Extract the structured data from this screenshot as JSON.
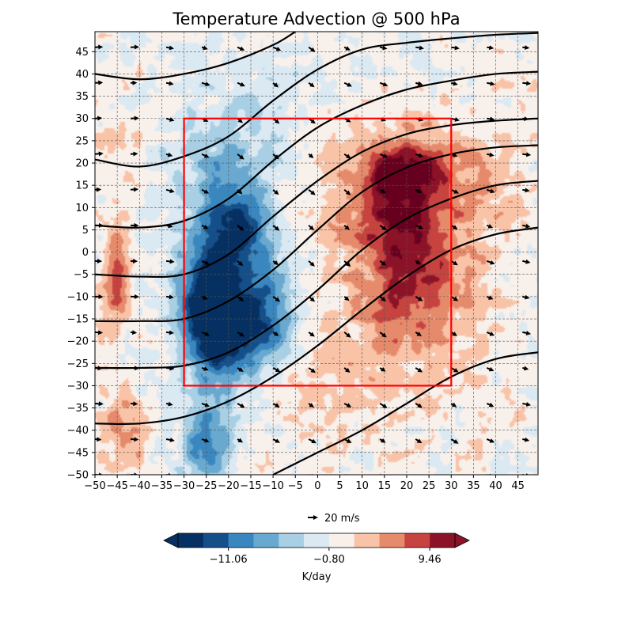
{
  "chart_data": {
    "type": "heatmap",
    "title": "Temperature Advection @ 500 hPa",
    "xlabel": "",
    "ylabel": "",
    "xlim": [
      -50,
      49.5
    ],
    "ylim": [
      -50,
      49.5
    ],
    "x_ticks": [
      -50,
      -45,
      -40,
      -35,
      -30,
      -25,
      -20,
      -15,
      -10,
      -5,
      0,
      5,
      10,
      15,
      20,
      25,
      30,
      35,
      40,
      45
    ],
    "y_ticks": [
      -50,
      -45,
      -40,
      -35,
      -30,
      -25,
      -20,
      -15,
      -10,
      -5,
      0,
      5,
      10,
      15,
      20,
      25,
      30,
      35,
      40,
      45
    ],
    "grid": true,
    "colormap": "RdBu_r",
    "colorbar": {
      "label": "K/day",
      "tick_labels": [
        "−11.06",
        "−0.80",
        "9.46"
      ],
      "tick_values": [
        -11.06,
        -0.8,
        9.46
      ],
      "level_edges": [
        -16.19,
        -13.62,
        -11.06,
        -8.49,
        -5.93,
        -3.36,
        -0.8,
        1.77,
        4.33,
        6.9,
        9.46,
        12.03
      ],
      "colors": [
        "#053061",
        "#154f8a",
        "#3a87bf",
        "#69a9d0",
        "#a8cfe4",
        "#dbe9f3",
        "#f8f0eb",
        "#f9c3a8",
        "#e68a6c",
        "#c7433f",
        "#8c1227",
        "#67001f"
      ],
      "extend": "both"
    },
    "field_features": [
      {
        "kind": "cold",
        "value": -9,
        "x": -20,
        "y": -8,
        "sx": 8,
        "sy": 14
      },
      {
        "kind": "cold",
        "value": -10,
        "x": -25,
        "y": -10,
        "sx": 4,
        "sy": 8
      },
      {
        "kind": "cold",
        "value": -9,
        "x": -18,
        "y": 5,
        "sx": 5,
        "sy": 6
      },
      {
        "kind": "cold",
        "value": -8,
        "x": -22,
        "y": -20,
        "sx": 5,
        "sy": 7
      },
      {
        "kind": "cold",
        "value": -8,
        "x": -12,
        "y": -15,
        "sx": 5,
        "sy": 7
      },
      {
        "kind": "cold",
        "value": -9,
        "x": -25,
        "y": -43,
        "sx": 4,
        "sy": 7
      },
      {
        "kind": "cold",
        "value": -4,
        "x": -22,
        "y": 20,
        "sx": 8,
        "sy": 8
      },
      {
        "kind": "cold",
        "value": -2,
        "x": -15,
        "y": 35,
        "sx": 12,
        "sy": 10
      },
      {
        "kind": "warm",
        "value": 8,
        "x": 20,
        "y": 5,
        "sx": 7,
        "sy": 12
      },
      {
        "kind": "warm",
        "value": 7,
        "x": 20,
        "y": 18,
        "sx": 6,
        "sy": 4
      },
      {
        "kind": "warm",
        "value": 5,
        "x": 22,
        "y": -10,
        "sx": 10,
        "sy": 8
      },
      {
        "kind": "warm",
        "value": 4,
        "x": 10,
        "y": 12,
        "sx": 8,
        "sy": 10
      },
      {
        "kind": "warm",
        "value": 4,
        "x": 30,
        "y": 15,
        "sx": 12,
        "sy": 10
      },
      {
        "kind": "warm",
        "value": 2.5,
        "x": 10,
        "y": -28,
        "sx": 16,
        "sy": 10
      },
      {
        "kind": "warm",
        "value": 9,
        "x": -45,
        "y": -5,
        "sx": 2,
        "sy": 7
      },
      {
        "kind": "warm",
        "value": 6,
        "x": -43,
        "y": -40,
        "sx": 4,
        "sy": 5
      },
      {
        "kind": "warm",
        "value": 3,
        "x": -45,
        "y": 25,
        "sx": 3,
        "sy": 5
      }
    ],
    "contours": [
      {
        "name": "",
        "points": [
          [
            -50,
            40
          ],
          [
            -40,
            38.8
          ],
          [
            -30,
            40
          ],
          [
            -20,
            42.5
          ],
          [
            -10,
            46.5
          ],
          [
            -5,
            49.5
          ]
        ]
      },
      {
        "name": "",
        "points": [
          [
            -50,
            20.8
          ],
          [
            -40,
            19.2
          ],
          [
            -30,
            21.5
          ],
          [
            -20,
            26
          ],
          [
            -10,
            34
          ],
          [
            0,
            41
          ],
          [
            10,
            45.5
          ],
          [
            20,
            47
          ],
          [
            30,
            48
          ],
          [
            40,
            48.8
          ],
          [
            49.5,
            49.2
          ]
        ]
      },
      {
        "name": "",
        "points": [
          [
            -50,
            6
          ],
          [
            -40,
            5.5
          ],
          [
            -30,
            7
          ],
          [
            -20,
            12
          ],
          [
            -10,
            20.5
          ],
          [
            0,
            28
          ],
          [
            10,
            33
          ],
          [
            20,
            36.5
          ],
          [
            30,
            38.5
          ],
          [
            40,
            40
          ],
          [
            49.5,
            40.5
          ]
        ]
      },
      {
        "name": "",
        "points": [
          [
            -50,
            -5
          ],
          [
            -40,
            -5.5
          ],
          [
            -30,
            -5
          ],
          [
            -20,
            -0.5
          ],
          [
            -10,
            8
          ],
          [
            0,
            16
          ],
          [
            10,
            22.5
          ],
          [
            20,
            26.5
          ],
          [
            30,
            28.5
          ],
          [
            40,
            29.5
          ],
          [
            49.5,
            30
          ]
        ]
      },
      {
        "name": "",
        "points": [
          [
            -50,
            -15.5
          ],
          [
            -40,
            -15.5
          ],
          [
            -30,
            -15
          ],
          [
            -20,
            -11
          ],
          [
            -10,
            -4
          ],
          [
            0,
            5
          ],
          [
            10,
            13.5
          ],
          [
            20,
            19
          ],
          [
            30,
            22
          ],
          [
            40,
            23.5
          ],
          [
            49.5,
            24
          ]
        ]
      },
      {
        "name": "",
        "points": [
          [
            -50,
            -26
          ],
          [
            -40,
            -26
          ],
          [
            -30,
            -25.5
          ],
          [
            -20,
            -22.5
          ],
          [
            -10,
            -16.5
          ],
          [
            0,
            -8.5
          ],
          [
            10,
            0.5
          ],
          [
            20,
            7.5
          ],
          [
            30,
            12
          ],
          [
            40,
            15
          ],
          [
            49.5,
            16
          ]
        ]
      },
      {
        "name": "",
        "points": [
          [
            -50,
            -38.5
          ],
          [
            -40,
            -38.5
          ],
          [
            -30,
            -37
          ],
          [
            -20,
            -33.5
          ],
          [
            -10,
            -28
          ],
          [
            0,
            -21
          ],
          [
            10,
            -13
          ],
          [
            20,
            -5.5
          ],
          [
            30,
            0.5
          ],
          [
            40,
            4
          ],
          [
            49.5,
            5.5
          ]
        ]
      },
      {
        "name": "",
        "points": [
          [
            -10,
            -50
          ],
          [
            0,
            -45
          ],
          [
            10,
            -40
          ],
          [
            20,
            -34
          ],
          [
            30,
            -28
          ],
          [
            40,
            -24
          ],
          [
            49.5,
            -22.5
          ]
        ]
      }
    ],
    "region_box": {
      "x0": -30,
      "x1": 30,
      "y0": -30,
      "y1": 30,
      "color": "#ff0000"
    },
    "quiver": {
      "x": [
        -50,
        -42,
        -34,
        -26,
        -18,
        -10,
        -2,
        6,
        14,
        22,
        30,
        38,
        46
      ],
      "y": [
        46,
        38,
        30,
        22,
        14,
        6,
        -2,
        -10,
        -18,
        -26,
        -34,
        -42,
        -50
      ],
      "reference_label": "20 m/s",
      "reference_speed": 20
    }
  }
}
